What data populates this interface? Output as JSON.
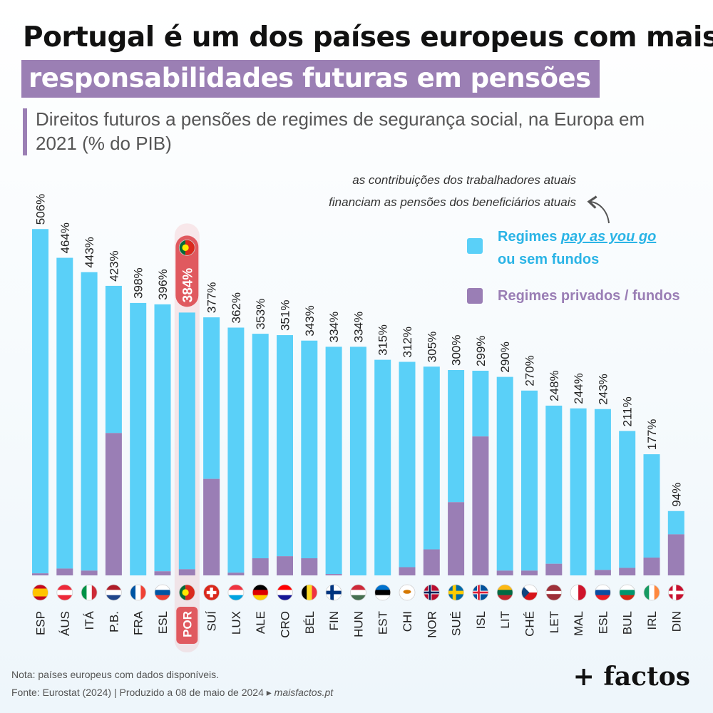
{
  "title": {
    "line1": "Portugal é um dos países europeus com mais",
    "line2": "responsabilidades futuras em pensões"
  },
  "subtitle": "Direitos futuros a pensões de regimes de segurança social, na Europa em 2021 (% do PIB)",
  "annotation": {
    "line1": "as contribuições dos trabalhadores atuais",
    "line2": "financiam as pensões dos beneficiários atuais"
  },
  "legend": {
    "payg_prefix": "Regimes ",
    "payg_link": "pay as you go",
    "payg_line2": "ou sem fundos",
    "funded": "Regimes privados / fundos"
  },
  "footer": {
    "note": "Nota: países europeus com dados disponíveis.",
    "source": "Fonte: Eurostat (2024)  |  Produzido a 08 de maio de 2024 ▸ ",
    "site": "maisfactos.pt"
  },
  "logo": "+ factos",
  "colors": {
    "payg": "#5ad0f8",
    "funded": "#9a7eb5",
    "highlight": "#f08b8f",
    "highlight_dark": "#e0595f"
  },
  "chart_data": {
    "type": "bar",
    "stacked": true,
    "unit": "% do PIB",
    "ylim": [
      0,
      530
    ],
    "highlight": "POR",
    "categories": [
      "ESP",
      "ÁUS",
      "ITÁ",
      "P.B.",
      "FRA",
      "ESL",
      "POR",
      "SUÍ",
      "LUX",
      "ALE",
      "CRO",
      "BÉL",
      "FIN",
      "HUN",
      "EST",
      "CHI",
      "NOR",
      "SUÉ",
      "ISL",
      "LIT",
      "CHÉ",
      "LET",
      "MAL",
      "ESL",
      "BUL",
      "IRL",
      "DIN"
    ],
    "totals": [
      506,
      464,
      443,
      423,
      398,
      396,
      384,
      377,
      362,
      353,
      351,
      343,
      334,
      334,
      315,
      312,
      305,
      300,
      299,
      290,
      270,
      248,
      244,
      243,
      211,
      177,
      94
    ],
    "total_labels": [
      "506%",
      "464%",
      "443%",
      "423%",
      "398%",
      "396%",
      "384%",
      "377%",
      "362%",
      "353%",
      "351%",
      "343%",
      "334%",
      "334%",
      "315%",
      "312%",
      "305%",
      "300%",
      "299%",
      "290%",
      "270%",
      "248%",
      "244%",
      "243%",
      "211%",
      "177%",
      "94%"
    ],
    "series": [
      {
        "name": "Regimes pay as you go ou sem fundos",
        "values": [
          503,
          454,
          436,
          215,
          398,
          390,
          375,
          236,
          358,
          328,
          323,
          318,
          332,
          334,
          315,
          300,
          267,
          193,
          96,
          283,
          263,
          231,
          244,
          235,
          200,
          151,
          34
        ]
      },
      {
        "name": "Regimes privados / fundos",
        "values": [
          3,
          10,
          7,
          208,
          0,
          6,
          9,
          141,
          4,
          25,
          28,
          25,
          2,
          0,
          0,
          12,
          38,
          107,
          203,
          7,
          7,
          17,
          0,
          8,
          11,
          26,
          60
        ]
      }
    ],
    "flags": [
      {
        "type": "h3",
        "colors": [
          "#c60b1e",
          "#ffc400",
          "#c60b1e"
        ],
        "ratio": [
          1,
          2,
          1
        ]
      },
      {
        "type": "h3",
        "colors": [
          "#ed2939",
          "#ffffff",
          "#ed2939"
        ]
      },
      {
        "type": "v3",
        "colors": [
          "#009246",
          "#ffffff",
          "#ce2b37"
        ]
      },
      {
        "type": "h3",
        "colors": [
          "#ae1c28",
          "#ffffff",
          "#21468b"
        ]
      },
      {
        "type": "v3",
        "colors": [
          "#0055a4",
          "#ffffff",
          "#ef4135"
        ]
      },
      {
        "type": "h3",
        "colors": [
          "#ffffff",
          "#0055a4",
          "#ef4135"
        ]
      },
      {
        "type": "pt",
        "colors": [
          "#046a38",
          "#da291c",
          "#ffe900"
        ]
      },
      {
        "type": "ch",
        "colors": [
          "#da291c",
          "#ffffff"
        ]
      },
      {
        "type": "h3",
        "colors": [
          "#ef3340",
          "#ffffff",
          "#00a3e0"
        ]
      },
      {
        "type": "h3",
        "colors": [
          "#000000",
          "#dd0000",
          "#ffce00"
        ]
      },
      {
        "type": "h3",
        "colors": [
          "#ff0000",
          "#ffffff",
          "#171796"
        ]
      },
      {
        "type": "v3",
        "colors": [
          "#000000",
          "#fdda24",
          "#ef3340"
        ]
      },
      {
        "type": "nordic",
        "colors": [
          "#ffffff",
          "#003580",
          "#003580"
        ]
      },
      {
        "type": "h3",
        "colors": [
          "#ce2939",
          "#ffffff",
          "#477050"
        ]
      },
      {
        "type": "h3",
        "colors": [
          "#0072ce",
          "#000000",
          "#ffffff"
        ]
      },
      {
        "type": "cy",
        "colors": [
          "#ffffff",
          "#d57800"
        ]
      },
      {
        "type": "nordic",
        "colors": [
          "#ba0c2f",
          "#ffffff",
          "#00205b"
        ]
      },
      {
        "type": "nordic",
        "colors": [
          "#006aa7",
          "#fecc00",
          "#fecc00"
        ]
      },
      {
        "type": "nordic",
        "colors": [
          "#02529c",
          "#ffffff",
          "#dc1e35"
        ]
      },
      {
        "type": "h3",
        "colors": [
          "#fdb913",
          "#006a44",
          "#c1272d"
        ]
      },
      {
        "type": "cz",
        "colors": [
          "#ffffff",
          "#d7141a",
          "#11457e"
        ]
      },
      {
        "type": "h3",
        "colors": [
          "#9e3039",
          "#ffffff",
          "#9e3039"
        ],
        "ratio": [
          2,
          1,
          2
        ]
      },
      {
        "type": "mt",
        "colors": [
          "#ffffff",
          "#cf142b"
        ]
      },
      {
        "type": "h3",
        "colors": [
          "#ffffff",
          "#0b4ea2",
          "#ee1c25"
        ]
      },
      {
        "type": "h3",
        "colors": [
          "#ffffff",
          "#00966e",
          "#d62612"
        ]
      },
      {
        "type": "v3",
        "colors": [
          "#169b62",
          "#ffffff",
          "#ff883e"
        ]
      },
      {
        "type": "nordic",
        "colors": [
          "#c8102e",
          "#ffffff",
          "#ffffff"
        ]
      }
    ]
  }
}
